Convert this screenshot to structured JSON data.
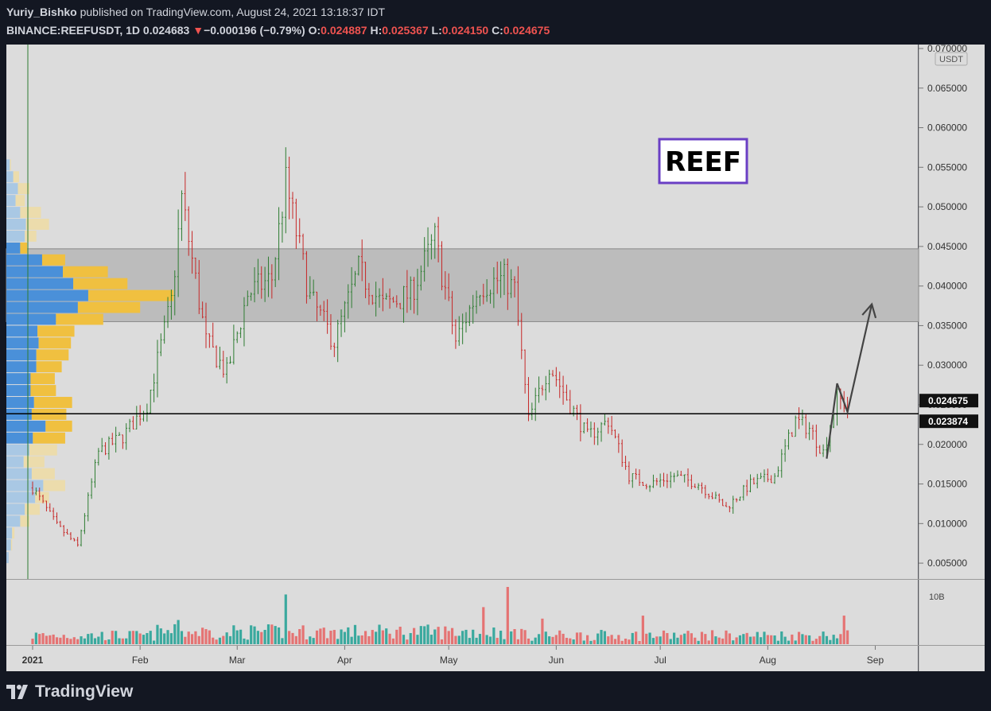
{
  "header": {
    "author": "Yuriy_Bishko",
    "published": "published on TradingView.com, August 24, 2021 13:18:37 IDT",
    "symbol": "BINANCE:REEFUSDT, 1D",
    "last": "0.024683",
    "change_arrow": "▼",
    "change": "−0.000196 (−0.79%)",
    "o_label": "O:",
    "o": "0.024887",
    "h_label": "H:",
    "h": "0.025367",
    "l_label": "L:",
    "l": "0.024150",
    "c_label": "C:",
    "c": "0.024675"
  },
  "branding": {
    "logo_text": "TradingView"
  },
  "colors": {
    "background": "#131722",
    "pane": "#dcdcdc",
    "up": "#26a69a",
    "down": "#ef5350",
    "candle_up": "#2e7d32",
    "candle_down": "#c62828",
    "zone": "#bcbcbc",
    "label_purple": "#6a3fc4"
  },
  "chart_data": {
    "type": "candlestick",
    "title": "REEF",
    "y_unit": "USDT",
    "ylim": [
      0.003,
      0.0705
    ],
    "y_ticks": [
      "0.070000",
      "0.065000",
      "0.060000",
      "0.055000",
      "0.050000",
      "0.045000",
      "0.040000",
      "0.035000",
      "0.030000",
      "0.025000",
      "0.020000",
      "0.015000",
      "0.010000",
      "0.005000"
    ],
    "x_ticks": [
      "2021",
      "Feb",
      "Mar",
      "Apr",
      "May",
      "Jun",
      "Jul",
      "Aug",
      "Sep"
    ],
    "price_labels": [
      "0.024675",
      "0.023874"
    ],
    "horizontal_line": 0.023874,
    "resistance_zone": [
      0.0355,
      0.0447
    ],
    "volume_axis_label": "10B",
    "projection_arrow": [
      [
        0.0182,
        "2021-08-18"
      ],
      [
        0.0277,
        "2021-08-21"
      ],
      [
        0.0241,
        "2021-08-24"
      ],
      [
        0.0377,
        "2021-08-31"
      ]
    ],
    "close_path": [
      [
        "2021-01-01",
        0.0145
      ],
      [
        "2021-01-08",
        0.0098
      ],
      [
        "2021-01-14",
        0.0072
      ],
      [
        "2021-01-20",
        0.019
      ],
      [
        "2021-01-27",
        0.021
      ],
      [
        "2021-02-03",
        0.025
      ],
      [
        "2021-02-10",
        0.038
      ],
      [
        "2021-02-13",
        0.051
      ],
      [
        "2021-02-20",
        0.033
      ],
      [
        "2021-02-26",
        0.029
      ],
      [
        "2021-03-04",
        0.039
      ],
      [
        "2021-03-11",
        0.041
      ],
      [
        "2021-03-15",
        0.053
      ],
      [
        "2021-03-22",
        0.0385
      ],
      [
        "2021-03-29",
        0.033
      ],
      [
        "2021-04-05",
        0.042
      ],
      [
        "2021-04-12",
        0.0375
      ],
      [
        "2021-04-20",
        0.039
      ],
      [
        "2021-04-27",
        0.046
      ],
      [
        "2021-05-03",
        0.033
      ],
      [
        "2021-05-10",
        0.04
      ],
      [
        "2021-05-17",
        0.041
      ],
      [
        "2021-05-20",
        0.0395
      ],
      [
        "2021-05-24",
        0.023
      ],
      [
        "2021-05-30",
        0.03
      ],
      [
        "2021-06-05",
        0.025
      ],
      [
        "2021-06-10",
        0.021
      ],
      [
        "2021-06-16",
        0.023
      ],
      [
        "2021-06-22",
        0.016
      ],
      [
        "2021-06-28",
        0.015
      ],
      [
        "2021-07-05",
        0.016
      ],
      [
        "2021-07-12",
        0.015
      ],
      [
        "2021-07-20",
        0.012
      ],
      [
        "2021-07-27",
        0.015
      ],
      [
        "2021-08-03",
        0.016
      ],
      [
        "2021-08-09",
        0.023
      ],
      [
        "2021-08-13",
        0.022
      ],
      [
        "2021-08-17",
        0.019
      ],
      [
        "2021-08-21",
        0.026
      ],
      [
        "2021-08-24",
        0.0247
      ]
    ],
    "volume_profile": [
      [
        0.0057,
        0.2,
        0.0
      ],
      [
        0.0073,
        0.4,
        0.1
      ],
      [
        0.0088,
        0.5,
        0.2
      ],
      [
        0.0103,
        1.2,
        0.8
      ],
      [
        0.0118,
        1.6,
        1.3
      ],
      [
        0.0133,
        2.5,
        1.2
      ],
      [
        0.0148,
        3.2,
        1.9
      ],
      [
        0.0163,
        2.2,
        2.0
      ],
      [
        0.0178,
        1.5,
        1.8
      ],
      [
        0.0193,
        2.0,
        2.4
      ],
      [
        0.0208,
        2.3,
        2.8
      ],
      [
        0.0223,
        3.4,
        2.3
      ],
      [
        0.0238,
        2.2,
        3.0
      ],
      [
        0.0253,
        2.4,
        3.3
      ],
      [
        0.0268,
        2.1,
        2.2
      ],
      [
        0.0283,
        2.1,
        2.1
      ],
      [
        0.0298,
        2.6,
        2.2
      ],
      [
        0.0313,
        2.6,
        2.8
      ],
      [
        0.0328,
        2.8,
        2.8
      ],
      [
        0.0343,
        2.7,
        3.2
      ],
      [
        0.0358,
        4.3,
        4.1
      ],
      [
        0.0373,
        6.2,
        5.4
      ],
      [
        0.0388,
        7.1,
        7.4
      ],
      [
        0.0403,
        5.8,
        4.7
      ],
      [
        0.0418,
        4.9,
        3.9
      ],
      [
        0.0433,
        3.1,
        2.0
      ],
      [
        0.0448,
        1.2,
        0.6
      ],
      [
        0.0463,
        1.6,
        1.0
      ],
      [
        0.0478,
        1.7,
        2.0
      ],
      [
        0.0493,
        1.2,
        1.8
      ],
      [
        0.0508,
        0.8,
        0.8
      ],
      [
        0.0523,
        1.0,
        1.0
      ],
      [
        0.0538,
        0.6,
        0.5
      ],
      [
        0.0553,
        0.3,
        0.1
      ]
    ],
    "volume_profile_note": "price, up volume, down volume"
  }
}
